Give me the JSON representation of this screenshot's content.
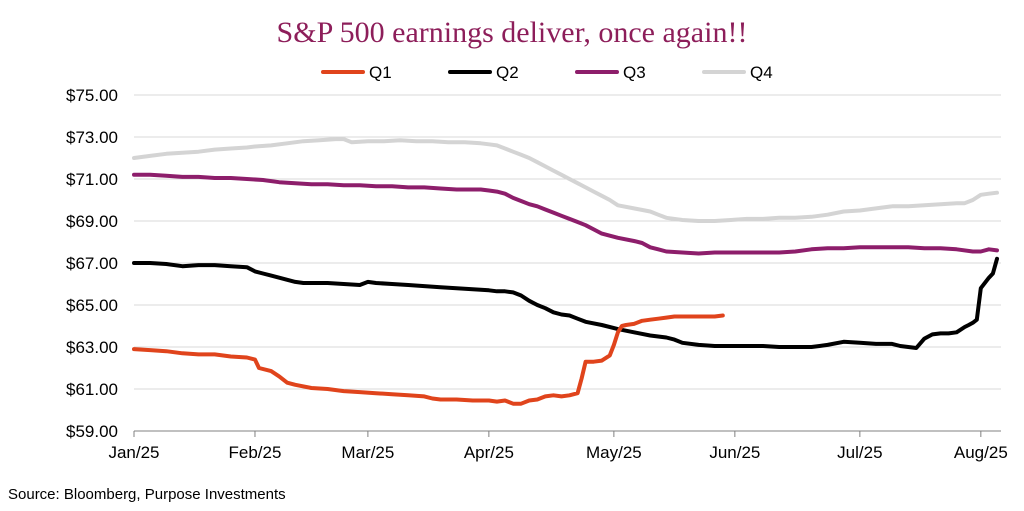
{
  "chart_data": {
    "type": "line",
    "title": "S&P 500 earnings deliver, once again!!",
    "source": "Source: Bloomberg, Purpose Investments",
    "xlabel": "",
    "ylabel": "",
    "ylim": [
      59,
      75
    ],
    "xlim": [
      0,
      215
    ],
    "y_ticks": [
      "$59.00",
      "$61.00",
      "$63.00",
      "$65.00",
      "$67.00",
      "$69.00",
      "$71.00",
      "$73.00",
      "$75.00"
    ],
    "y_tick_values": [
      59,
      61,
      63,
      65,
      67,
      69,
      71,
      73,
      75
    ],
    "x_ticks": [
      "Jan/25",
      "Feb/25",
      "Mar/25",
      "Apr/25",
      "May/25",
      "Jun/25",
      "Jul/25",
      "Aug/25"
    ],
    "x_tick_values": [
      0,
      30,
      58,
      88,
      119,
      149,
      180,
      210
    ],
    "grid": true,
    "legend_position": "top-center",
    "series": [
      {
        "name": "Q1",
        "color": "#e0441c",
        "x": [
          0,
          4,
          8,
          12,
          16,
          20,
          24,
          28,
          30,
          31,
          34,
          36,
          38,
          40,
          44,
          48,
          52,
          56,
          60,
          64,
          68,
          72,
          74,
          76,
          80,
          84,
          88,
          90,
          92,
          94,
          96,
          98,
          100,
          102,
          104,
          106,
          108,
          110,
          111,
          112,
          114,
          116,
          118,
          119,
          120,
          121,
          122,
          124,
          126,
          128,
          130,
          132,
          134,
          136,
          138,
          140,
          142,
          144,
          146
        ],
        "values": [
          62.9,
          62.85,
          62.8,
          62.7,
          62.65,
          62.65,
          62.55,
          62.5,
          62.4,
          62.0,
          61.85,
          61.6,
          61.3,
          61.2,
          61.05,
          61.0,
          60.9,
          60.85,
          60.8,
          60.75,
          60.7,
          60.65,
          60.55,
          60.5,
          60.5,
          60.45,
          60.45,
          60.4,
          60.45,
          60.3,
          60.3,
          60.45,
          60.5,
          60.65,
          60.7,
          60.65,
          60.7,
          60.8,
          61.5,
          62.3,
          62.3,
          62.35,
          62.6,
          63.1,
          63.7,
          64.0,
          64.05,
          64.1,
          64.25,
          64.3,
          64.35,
          64.4,
          64.45,
          64.45,
          64.45,
          64.45,
          64.45,
          64.45,
          64.5
        ]
      },
      {
        "name": "Q2",
        "color": "#000000",
        "x": [
          0,
          4,
          8,
          12,
          16,
          20,
          24,
          28,
          30,
          32,
          34,
          36,
          38,
          40,
          42,
          44,
          48,
          52,
          56,
          58,
          60,
          64,
          68,
          72,
          76,
          80,
          84,
          88,
          90,
          92,
          94,
          96,
          98,
          100,
          102,
          104,
          106,
          108,
          110,
          112,
          116,
          120,
          124,
          128,
          132,
          134,
          136,
          140,
          144,
          148,
          152,
          156,
          160,
          164,
          168,
          170,
          172,
          176,
          180,
          184,
          188,
          190,
          192,
          194,
          196,
          198,
          200,
          202,
          204,
          206,
          207,
          208,
          209,
          210,
          212,
          213,
          214
        ],
        "values": [
          67.0,
          67.0,
          66.95,
          66.85,
          66.9,
          66.9,
          66.85,
          66.8,
          66.6,
          66.5,
          66.4,
          66.3,
          66.2,
          66.1,
          66.05,
          66.05,
          66.05,
          66.0,
          65.95,
          66.1,
          66.05,
          66.0,
          65.95,
          65.9,
          65.85,
          65.8,
          65.75,
          65.7,
          65.65,
          65.65,
          65.6,
          65.45,
          65.2,
          65.0,
          64.85,
          64.65,
          64.55,
          64.5,
          64.35,
          64.2,
          64.05,
          63.85,
          63.7,
          63.55,
          63.45,
          63.35,
          63.2,
          63.1,
          63.05,
          63.05,
          63.05,
          63.05,
          63.0,
          63.0,
          63.0,
          63.05,
          63.1,
          63.25,
          63.2,
          63.15,
          63.15,
          63.05,
          63.0,
          62.95,
          63.4,
          63.6,
          63.65,
          63.65,
          63.7,
          63.95,
          64.05,
          64.15,
          64.3,
          65.8,
          66.3,
          66.5,
          67.2
        ]
      },
      {
        "name": "Q3",
        "color": "#8d1e6b",
        "x": [
          0,
          4,
          8,
          12,
          16,
          20,
          24,
          28,
          32,
          36,
          40,
          44,
          48,
          52,
          56,
          60,
          64,
          68,
          72,
          76,
          80,
          84,
          86,
          88,
          90,
          92,
          94,
          96,
          98,
          100,
          102,
          104,
          106,
          108,
          110,
          112,
          114,
          116,
          118,
          120,
          124,
          126,
          128,
          130,
          132,
          136,
          140,
          144,
          148,
          152,
          156,
          160,
          164,
          168,
          172,
          176,
          180,
          184,
          188,
          192,
          196,
          200,
          204,
          208,
          210,
          212,
          214
        ],
        "values": [
          71.2,
          71.2,
          71.15,
          71.1,
          71.1,
          71.05,
          71.05,
          71.0,
          70.95,
          70.85,
          70.8,
          70.75,
          70.75,
          70.7,
          70.7,
          70.65,
          70.65,
          70.6,
          70.6,
          70.55,
          70.5,
          70.5,
          70.5,
          70.45,
          70.4,
          70.3,
          70.1,
          69.95,
          69.8,
          69.7,
          69.55,
          69.4,
          69.25,
          69.1,
          68.95,
          68.8,
          68.6,
          68.4,
          68.3,
          68.2,
          68.05,
          67.95,
          67.75,
          67.65,
          67.55,
          67.5,
          67.45,
          67.5,
          67.5,
          67.5,
          67.5,
          67.5,
          67.55,
          67.65,
          67.7,
          67.7,
          67.75,
          67.75,
          67.75,
          67.75,
          67.7,
          67.7,
          67.65,
          67.55,
          67.55,
          67.65,
          67.6
        ]
      },
      {
        "name": "Q4",
        "color": "#d4d4d4",
        "x": [
          0,
          4,
          8,
          12,
          16,
          20,
          24,
          28,
          30,
          34,
          38,
          42,
          46,
          50,
          52,
          54,
          58,
          62,
          66,
          70,
          74,
          78,
          82,
          86,
          88,
          90,
          92,
          94,
          96,
          98,
          100,
          102,
          104,
          106,
          108,
          110,
          112,
          114,
          116,
          118,
          120,
          124,
          128,
          130,
          132,
          136,
          140,
          144,
          148,
          152,
          156,
          160,
          164,
          168,
          172,
          176,
          180,
          184,
          188,
          192,
          196,
          200,
          204,
          206,
          208,
          210,
          212,
          214
        ],
        "values": [
          72.0,
          72.1,
          72.2,
          72.25,
          72.3,
          72.4,
          72.45,
          72.5,
          72.55,
          72.6,
          72.7,
          72.8,
          72.85,
          72.9,
          72.9,
          72.75,
          72.8,
          72.8,
          72.85,
          72.8,
          72.8,
          72.75,
          72.75,
          72.7,
          72.65,
          72.6,
          72.45,
          72.3,
          72.15,
          72.0,
          71.8,
          71.6,
          71.4,
          71.2,
          71.0,
          70.8,
          70.6,
          70.4,
          70.2,
          70.0,
          69.75,
          69.6,
          69.45,
          69.3,
          69.15,
          69.05,
          69.0,
          69.0,
          69.05,
          69.1,
          69.1,
          69.15,
          69.15,
          69.2,
          69.3,
          69.45,
          69.5,
          69.6,
          69.7,
          69.7,
          69.75,
          69.8,
          69.85,
          69.85,
          70.0,
          70.25,
          70.3,
          70.35
        ]
      }
    ]
  }
}
